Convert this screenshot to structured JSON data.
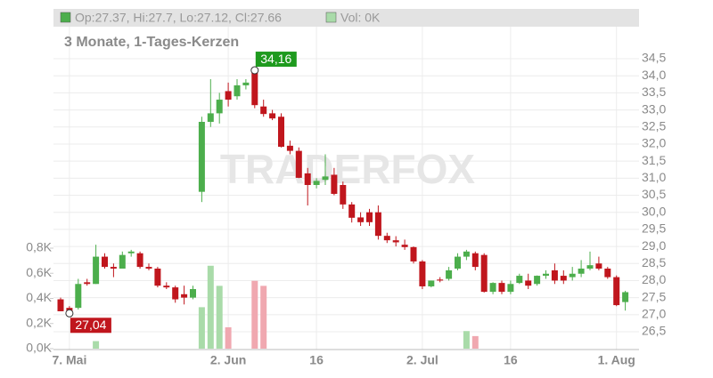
{
  "chart_data": {
    "type": "candlestick",
    "title": "3 Monate, 1-Tages-Kerzen",
    "header": "Op:27.37, Hi:27.7, Lo:27.12, Cl:27.66",
    "volume_header": "Vol: 0K",
    "watermark": "TRADERFOX",
    "up_color": "#4cae4c",
    "down_color": "#c0161d",
    "volume_up_color": "#a9dba9",
    "volume_down_color": "#f0a8b0",
    "grid": true,
    "categories": [
      null,
      "7. Mai",
      null,
      null,
      null,
      null,
      null,
      null,
      null,
      null,
      null,
      null,
      null,
      null,
      null,
      null,
      null,
      null,
      null,
      "2. Jun",
      null,
      null,
      null,
      null,
      null,
      null,
      null,
      null,
      null,
      "16",
      null,
      null,
      null,
      null,
      null,
      null,
      null,
      null,
      null,
      null,
      null,
      "2. Jul",
      null,
      null,
      null,
      null,
      null,
      null,
      null,
      null,
      null,
      "16",
      null,
      null,
      null,
      null,
      null,
      null,
      null,
      null,
      null,
      null,
      null,
      "1. Aug",
      null
    ],
    "open": [
      27.45,
      27.2,
      27.2,
      27.95,
      27.9,
      28.7,
      28.4,
      28.35,
      28.8,
      28.8,
      28.4,
      28.35,
      27.85,
      27.8,
      27.6,
      27.5,
      30.6,
      32.65,
      32.9,
      33.55,
      33.4,
      33.72,
      34.1,
      33.1,
      32.9,
      32.8,
      31.95,
      31.8,
      31.14,
      30.8,
      30.95,
      31.1,
      30.8,
      30.23,
      29.85,
      30.0,
      30.0,
      29.31,
      29.18,
      29.05,
      28.98,
      28.56,
      27.83,
      28.03,
      28.05,
      28.35,
      28.7,
      28.8,
      28.75,
      27.67,
      27.93,
      27.67,
      27.93,
      28.0,
      27.9,
      28.14,
      28.3,
      28.14,
      28.1,
      28.2,
      28.35,
      28.5,
      28.35,
      28.1,
      27.37
    ],
    "high": [
      27.5,
      27.25,
      28.05,
      28.05,
      29.05,
      28.8,
      28.5,
      28.85,
      28.9,
      28.85,
      28.5,
      28.4,
      27.95,
      27.85,
      27.85,
      27.85,
      32.8,
      33.9,
      33.5,
      33.8,
      33.9,
      33.9,
      34.16,
      33.3,
      33.0,
      32.9,
      32.1,
      31.9,
      31.3,
      31.0,
      31.7,
      31.3,
      30.9,
      30.3,
      30.0,
      30.1,
      30.2,
      29.4,
      29.3,
      29.2,
      29.0,
      28.6,
      28.0,
      28.1,
      28.4,
      28.8,
      28.9,
      28.85,
      28.8,
      27.95,
      28.0,
      28.0,
      28.2,
      28.2,
      28.15,
      28.3,
      28.5,
      28.3,
      28.4,
      28.6,
      28.85,
      28.7,
      28.4,
      28.15,
      27.7
    ],
    "low": [
      27.1,
      27.04,
      27.15,
      27.85,
      27.9,
      28.35,
      28.1,
      28.35,
      28.7,
      28.35,
      28.3,
      27.8,
      27.75,
      27.35,
      27.3,
      27.45,
      30.3,
      32.5,
      32.6,
      33.1,
      33.3,
      33.6,
      33.05,
      32.8,
      32.7,
      31.9,
      31.7,
      31.0,
      30.2,
      30.7,
      30.8,
      30.5,
      30.1,
      29.7,
      29.6,
      29.6,
      29.2,
      29.1,
      29.0,
      28.9,
      28.5,
      27.75,
      27.8,
      27.95,
      28.0,
      28.3,
      28.6,
      28.3,
      27.65,
      27.6,
      27.6,
      27.6,
      27.9,
      27.75,
      27.85,
      28.05,
      27.9,
      27.9,
      28.0,
      28.1,
      28.3,
      28.3,
      28.05,
      27.25,
      27.12
    ],
    "close": [
      27.1,
      27.1,
      27.9,
      27.9,
      28.7,
      28.4,
      28.35,
      28.75,
      28.85,
      28.4,
      28.35,
      27.85,
      27.8,
      27.45,
      27.5,
      27.75,
      32.65,
      32.9,
      33.3,
      33.3,
      33.72,
      33.8,
      33.14,
      32.88,
      32.75,
      31.92,
      31.8,
      31.01,
      30.8,
      30.92,
      31.05,
      30.54,
      30.23,
      29.84,
      29.71,
      29.71,
      29.31,
      29.18,
      29.12,
      28.98,
      28.56,
      27.83,
      28.0,
      28.0,
      28.3,
      28.7,
      28.85,
      28.4,
      27.67,
      27.93,
      27.67,
      27.9,
      28.14,
      27.85,
      28.14,
      28.2,
      28.0,
      28.0,
      28.2,
      28.35,
      28.45,
      28.35,
      28.1,
      27.28,
      27.66
    ],
    "volume": [
      0,
      0,
      0,
      0,
      0.06,
      0,
      0,
      0,
      0,
      0,
      0,
      0,
      0,
      0,
      0,
      0,
      0.33,
      0.66,
      0.5,
      0.17,
      0,
      0,
      0.54,
      0.5,
      0,
      0,
      0,
      0,
      0,
      0,
      0,
      0,
      0,
      0,
      0,
      0,
      0,
      0,
      0,
      0,
      0,
      0,
      0,
      0,
      0,
      0,
      0.14,
      0.1,
      0,
      0,
      0,
      0,
      0,
      0,
      0,
      0,
      0,
      0,
      0,
      0,
      0,
      0,
      0,
      0,
      0
    ],
    "ylim": [
      26.5,
      34.5
    ],
    "yticks": [
      {
        "value": 26.5,
        "label": "26,5"
      },
      {
        "value": 27,
        "label": "27,0"
      },
      {
        "value": 27.5,
        "label": "27,5"
      },
      {
        "value": 28,
        "label": "28,0"
      },
      {
        "value": 28.5,
        "label": "28,5"
      },
      {
        "value": 29,
        "label": "29,0"
      },
      {
        "value": 29.5,
        "label": "29,5"
      },
      {
        "value": 30,
        "label": "30,0"
      },
      {
        "value": 30.5,
        "label": "30,5"
      },
      {
        "value": 31,
        "label": "31,0"
      },
      {
        "value": 31.5,
        "label": "31,5"
      },
      {
        "value": 32,
        "label": "32,0"
      },
      {
        "value": 32.5,
        "label": "32,5"
      },
      {
        "value": 33,
        "label": "33,0"
      },
      {
        "value": 33.5,
        "label": "33,5"
      },
      {
        "value": 34,
        "label": "34,0"
      },
      {
        "value": 34.5,
        "label": "34,5"
      }
    ],
    "y2lim": [
      0,
      0.8
    ],
    "y2ticks": [
      {
        "value": 0,
        "label": "0,0K"
      },
      {
        "value": 0.2,
        "label": "0,2K"
      },
      {
        "value": 0.4,
        "label": "0,4K"
      },
      {
        "value": 0.6,
        "label": "0,6K"
      },
      {
        "value": 0.8,
        "label": "0,8K"
      }
    ],
    "annotations": [
      {
        "text": "34,16",
        "color": "#1e9a1e"
      },
      {
        "text": "27,04",
        "color": "#c0161d"
      }
    ]
  }
}
